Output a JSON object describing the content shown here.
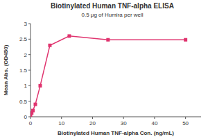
{
  "chart_data": {
    "type": "line",
    "title": "Biotinylated Human TNF-alpha ELISA",
    "subtitle": "0.5 μg of Humira per well",
    "x_label": "Biotinylated Human TNF-alpha Con. (ng/mL)",
    "y_label": "Mean Abs. (OD450)",
    "x": [
      0,
      0.39,
      0.78,
      1.56,
      3.125,
      6.25,
      12.5,
      25,
      50
    ],
    "values": [
      0.05,
      0.12,
      0.2,
      0.4,
      1.0,
      2.3,
      2.6,
      2.48,
      2.48
    ],
    "color": "#e0336e",
    "marker": "square",
    "line_style": "solid",
    "xlim": [
      0,
      55
    ],
    "xticks": [
      0,
      10,
      20,
      30,
      40,
      50
    ],
    "ylim": [
      0,
      3
    ],
    "yticks": [
      0,
      0.5,
      1,
      1.5,
      2,
      2.5,
      3
    ],
    "grid": false
  }
}
